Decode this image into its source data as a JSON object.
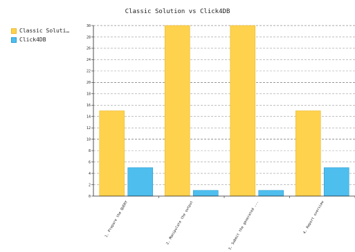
{
  "chart_data": {
    "type": "bar",
    "title": "Classic Solution vs Click4DB",
    "xlabel": "",
    "ylabel": "",
    "categories": [
      "1. Prepare the QUERY",
      "2. Manipulate the output",
      "3. Submit the generated ...",
      "4. Report overview"
    ],
    "series": [
      {
        "name": "Classic Soluti…",
        "values": [
          15,
          30,
          30,
          15
        ],
        "color": "#FFD24D",
        "stroke": "#E8B830"
      },
      {
        "name": "Click4DB",
        "values": [
          5,
          1,
          1,
          5
        ],
        "color": "#4DBEEE",
        "stroke": "#2A9BD0"
      }
    ],
    "ylim": [
      0,
      30
    ],
    "yticks": [
      0,
      2,
      4,
      6,
      8,
      10,
      12,
      14,
      16,
      18,
      20,
      22,
      24,
      26,
      28,
      30
    ],
    "grid": true,
    "grid_style": "dashed",
    "legend_position": "top-left"
  }
}
